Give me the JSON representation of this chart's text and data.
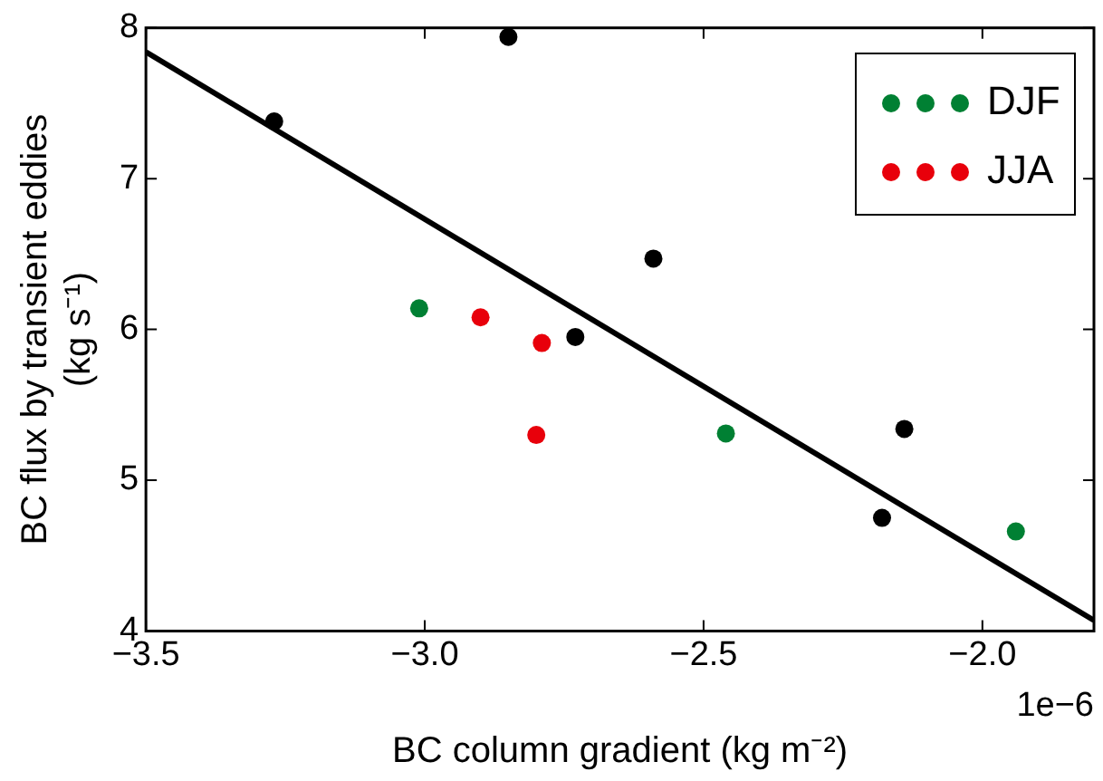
{
  "chart_data": {
    "type": "scatter",
    "xlabel": "BC column gradient (kg m⁻²)",
    "ylabel": "BC flux by transient eddies\n(kg s⁻¹)",
    "annotations": [
      "1e−6"
    ],
    "xlim": [
      -3.5,
      -1.8
    ],
    "xticks": [
      {
        "value": -3.5,
        "label": "−3.5"
      },
      {
        "value": -3.0,
        "label": "−3.0"
      },
      {
        "value": -2.5,
        "label": "−2.5"
      },
      {
        "value": -2.0,
        "label": "−2.0"
      }
    ],
    "ylim": [
      4,
      8
    ],
    "yticks": [
      4,
      5,
      6,
      7,
      8
    ],
    "grid": false,
    "legend": "top right",
    "marker": "circle",
    "series": [
      {
        "color": "#000000",
        "x": [
          -3.27,
          -2.85,
          -2.59,
          -2.73,
          -2.14,
          -2.18
        ],
        "values": [
          7.38,
          7.94,
          6.47,
          5.95,
          5.34,
          4.75
        ]
      },
      {
        "name": "DJF",
        "color": "#008033",
        "x": [
          -3.01,
          -2.46,
          -1.94
        ],
        "values": [
          6.14,
          5.31,
          4.66
        ]
      },
      {
        "name": "JJA",
        "color": "#e8000b",
        "x": [
          -2.9,
          -2.79,
          -2.8
        ],
        "values": [
          6.08,
          5.91,
          5.3
        ]
      },
      {
        "type": "line",
        "color": "#000000",
        "marker": "none",
        "x": [
          -3.5,
          -1.8
        ],
        "values": [
          7.84,
          4.07
        ]
      }
    ]
  }
}
